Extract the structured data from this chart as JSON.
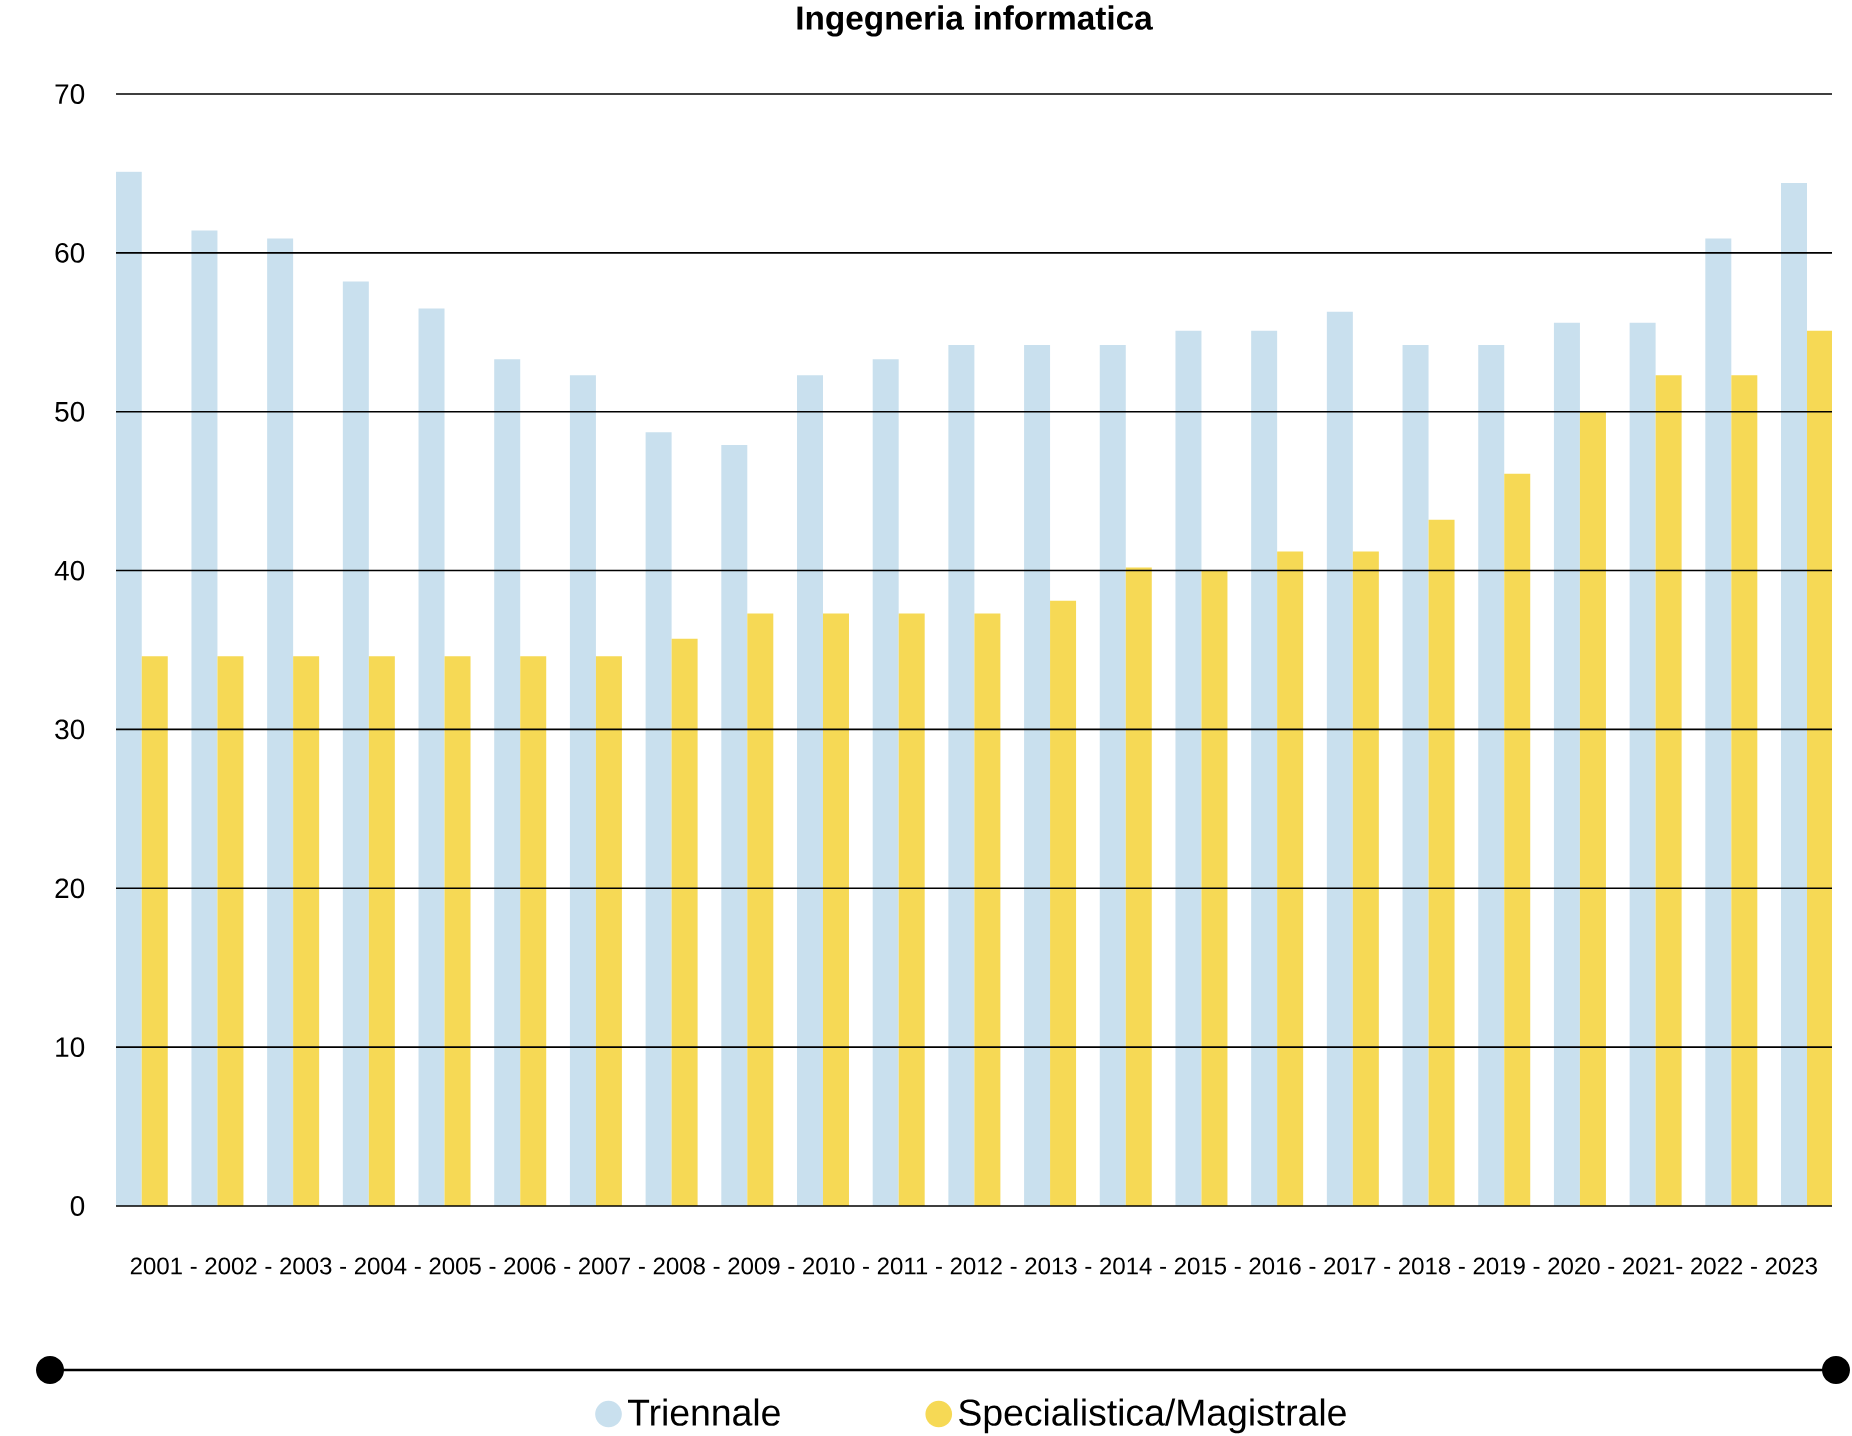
{
  "chart_data": {
    "type": "bar",
    "title": "Ingegneria informatica",
    "xlabel": "2001 - 2002 - 2003 - 2004 - 2005 - 2006 - 2007 - 2008 - 2009 - 2010 - 2011 - 2012 - 2013 - 2014 - 2015 - 2016 - 2017 - 2018 - 2019 - 2020 - 2021- 2022 - 2023",
    "categories": [
      null,
      null,
      null,
      null,
      null,
      null,
      null,
      null,
      null,
      null,
      null,
      null,
      null,
      null,
      null,
      null,
      null,
      null,
      null,
      null,
      null,
      null,
      null
    ],
    "series": [
      {
        "name": "Triennale",
        "color": "#c9e0ee",
        "values": [
          65.1,
          61.4,
          60.9,
          58.2,
          56.5,
          53.3,
          52.3,
          48.7,
          47.9,
          52.3,
          53.3,
          54.2,
          54.2,
          54.2,
          55.1,
          55.1,
          56.3,
          54.2,
          54.2,
          55.6,
          55.6,
          60.9,
          64.4
        ]
      },
      {
        "name": "Specialistica/Magistrale",
        "color": "#f6d955",
        "values": [
          34.6,
          34.6,
          34.6,
          34.6,
          34.6,
          34.6,
          34.6,
          35.7,
          37.3,
          37.3,
          37.3,
          37.3,
          38.1,
          40.2,
          40.0,
          41.2,
          41.2,
          43.2,
          46.1,
          50.0,
          52.3,
          52.3,
          55.1
        ]
      }
    ],
    "ylim": [
      0,
      70
    ],
    "yticks": [
      0,
      10,
      20,
      30,
      40,
      50,
      60,
      70
    ],
    "grid": "y",
    "legend": "bottom",
    "tick_labels": "y"
  }
}
